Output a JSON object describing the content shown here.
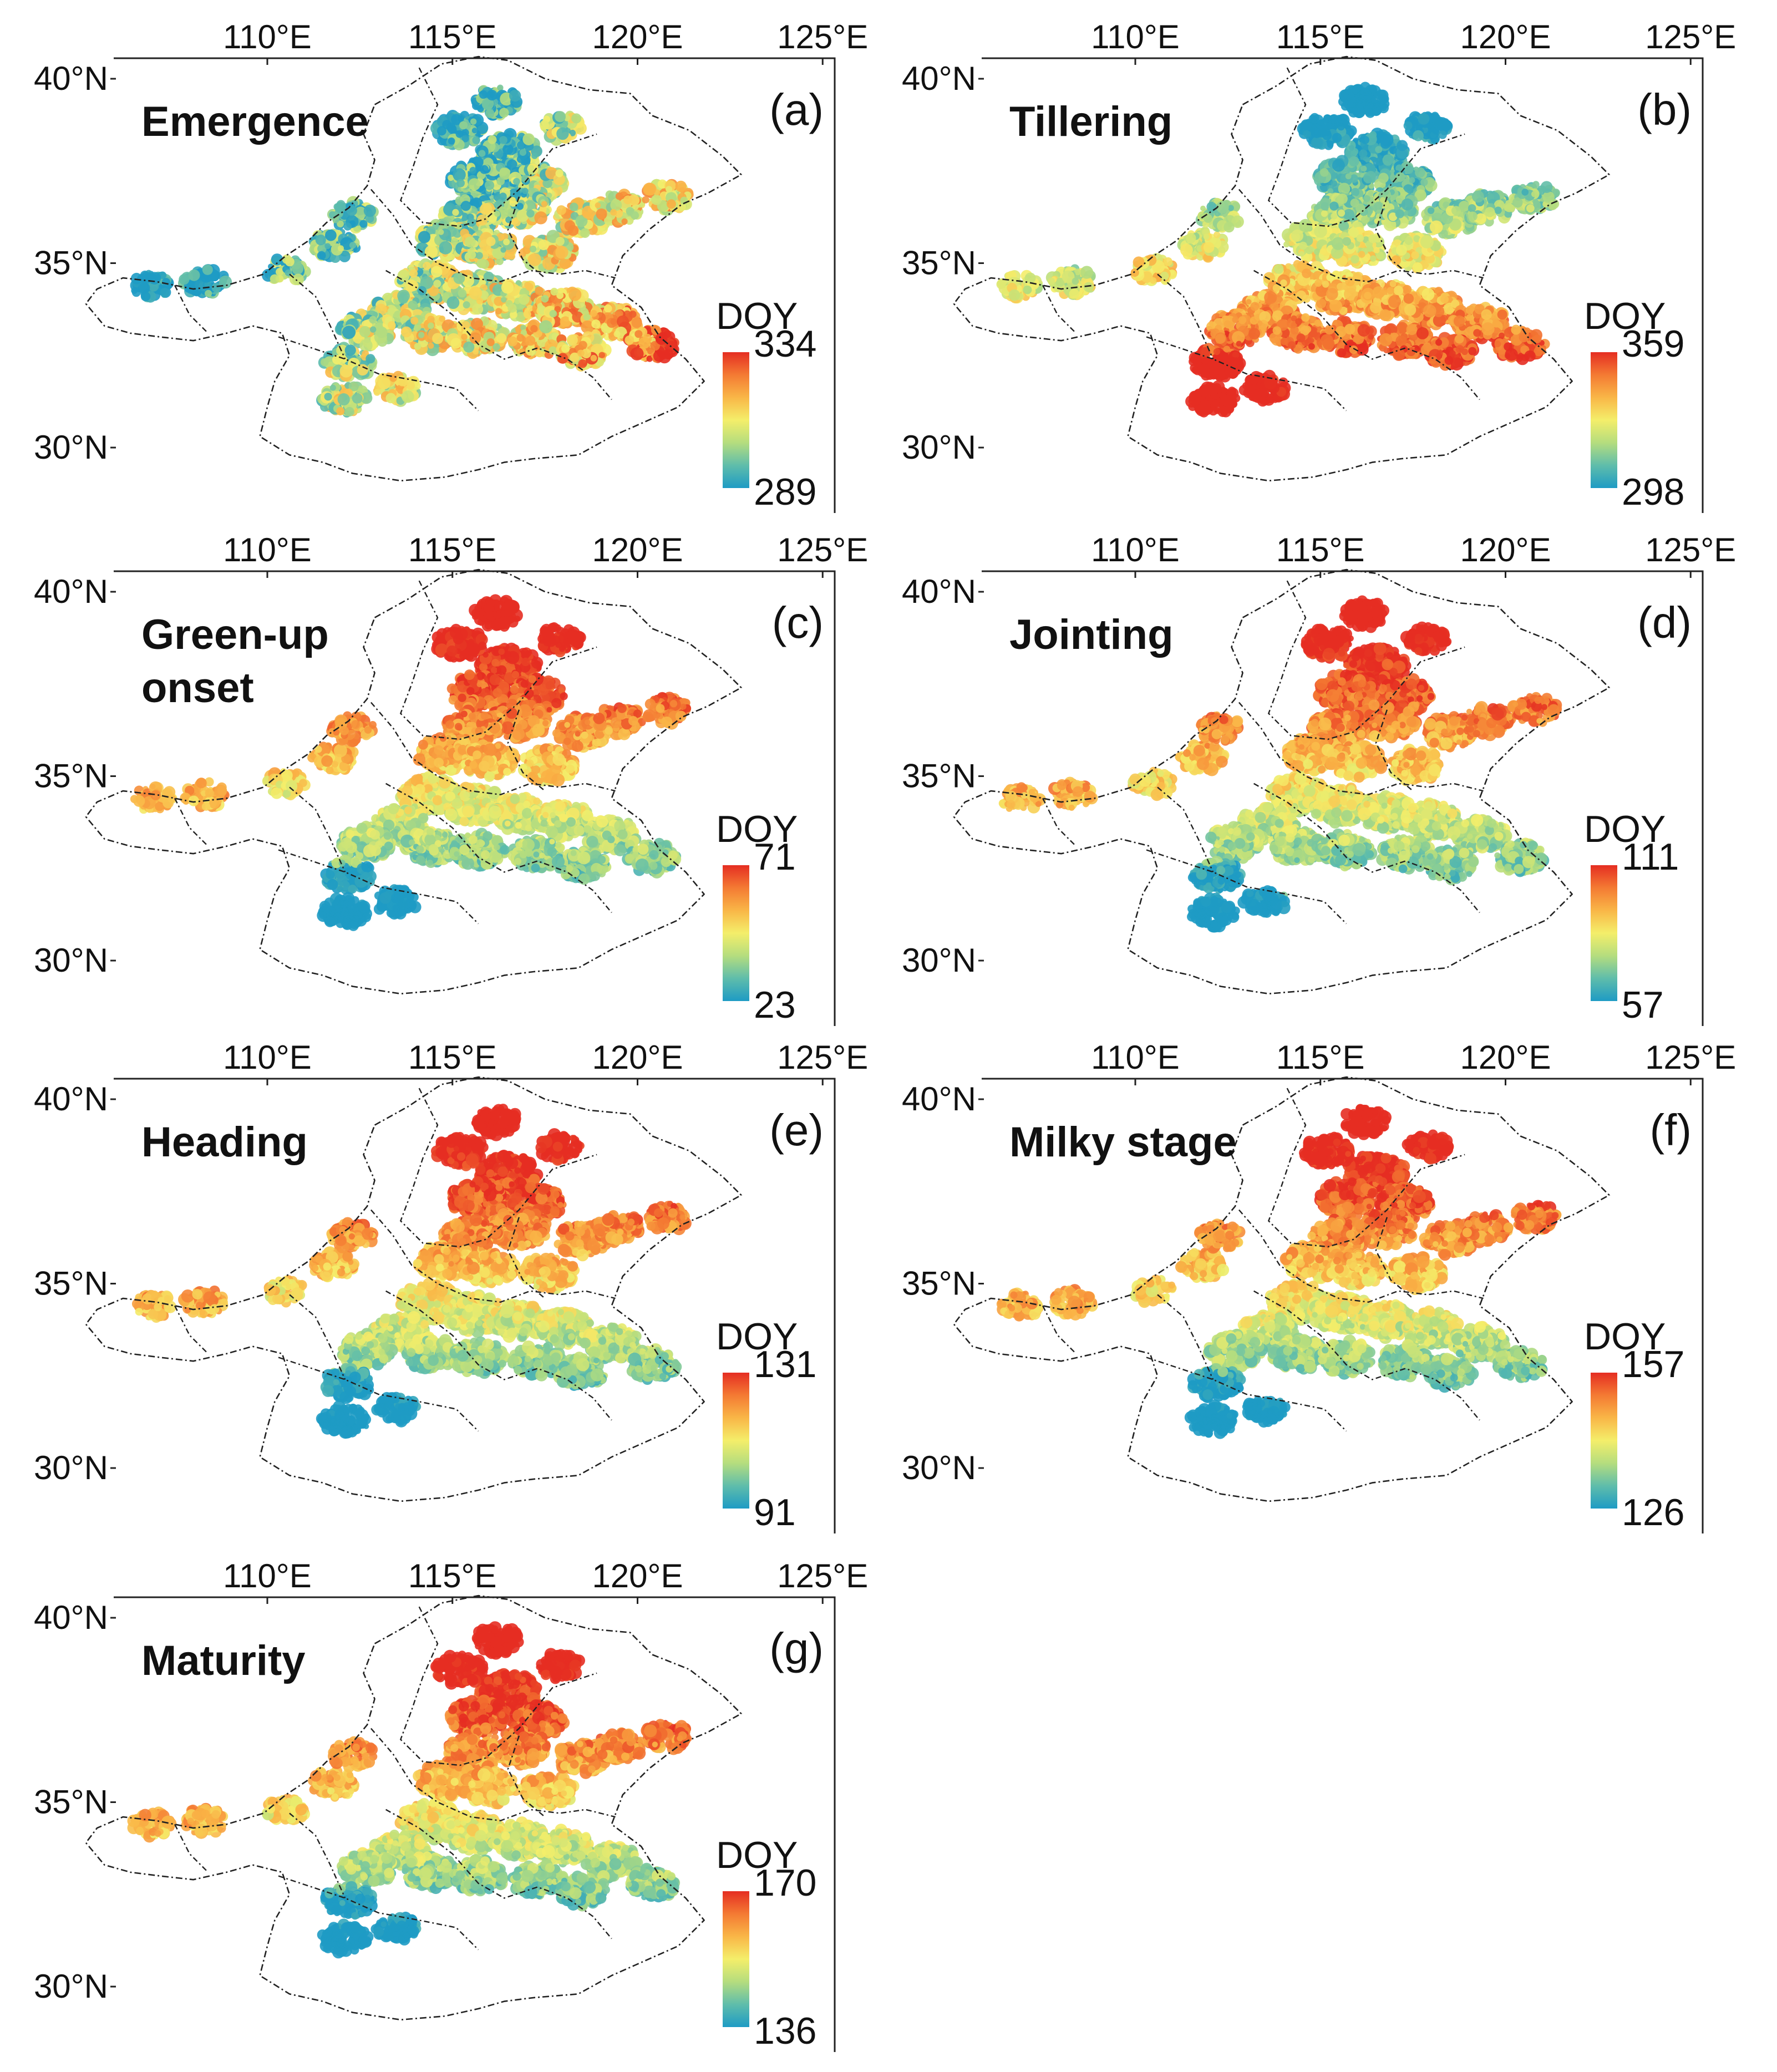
{
  "lon_ticks": [
    "110°E",
    "115°E",
    "120°E",
    "125°E"
  ],
  "lat_ticks": [
    "40°N",
    "35°N",
    "30°N"
  ],
  "colorbar_colors": [
    "#1e9bc4",
    "#5fbdab",
    "#b5dd7e",
    "#f4ee6a",
    "#f9b647",
    "#f47a33",
    "#e52e22"
  ],
  "panels": [
    {
      "letter": "(a)",
      "stage_lines": [
        "Emergence"
      ],
      "legend_title": "DOY",
      "cbar_max": "334",
      "cbar_min": "289",
      "pattern": "emergence",
      "map_data": {
        "doy_range": [
          289,
          334
        ]
      }
    },
    {
      "letter": "(b)",
      "stage_lines": [
        "Tillering"
      ],
      "legend_title": "DOY",
      "cbar_max": "359",
      "cbar_min": "298",
      "pattern": "tillering",
      "map_data": {
        "doy_range": [
          298,
          359
        ]
      }
    },
    {
      "letter": "(c)",
      "stage_lines": [
        "Green-up",
        "onset"
      ],
      "legend_title": "DOY",
      "cbar_max": "71",
      "cbar_min": "23",
      "pattern": "north_late",
      "map_data": {
        "doy_range": [
          23,
          71
        ]
      }
    },
    {
      "letter": "(d)",
      "stage_lines": [
        "Jointing"
      ],
      "legend_title": "DOY",
      "cbar_max": "111",
      "cbar_min": "57",
      "pattern": "north_late",
      "map_data": {
        "doy_range": [
          57,
          111
        ]
      }
    },
    {
      "letter": "(e)",
      "stage_lines": [
        "Heading"
      ],
      "legend_title": "DOY",
      "cbar_max": "131",
      "cbar_min": "91",
      "pattern": "north_late",
      "map_data": {
        "doy_range": [
          91,
          131
        ]
      }
    },
    {
      "letter": "(f)",
      "stage_lines": [
        "Milky stage"
      ],
      "legend_title": "DOY",
      "cbar_max": "157",
      "cbar_min": "126",
      "pattern": "north_late",
      "map_data": {
        "doy_range": [
          126,
          157
        ]
      }
    },
    {
      "letter": "(g)",
      "stage_lines": [
        "Maturity"
      ],
      "legend_title": "DOY",
      "cbar_max": "170",
      "cbar_min": "136",
      "pattern": "north_late",
      "map_data": {
        "doy_range": [
          136,
          170
        ]
      }
    }
  ]
}
